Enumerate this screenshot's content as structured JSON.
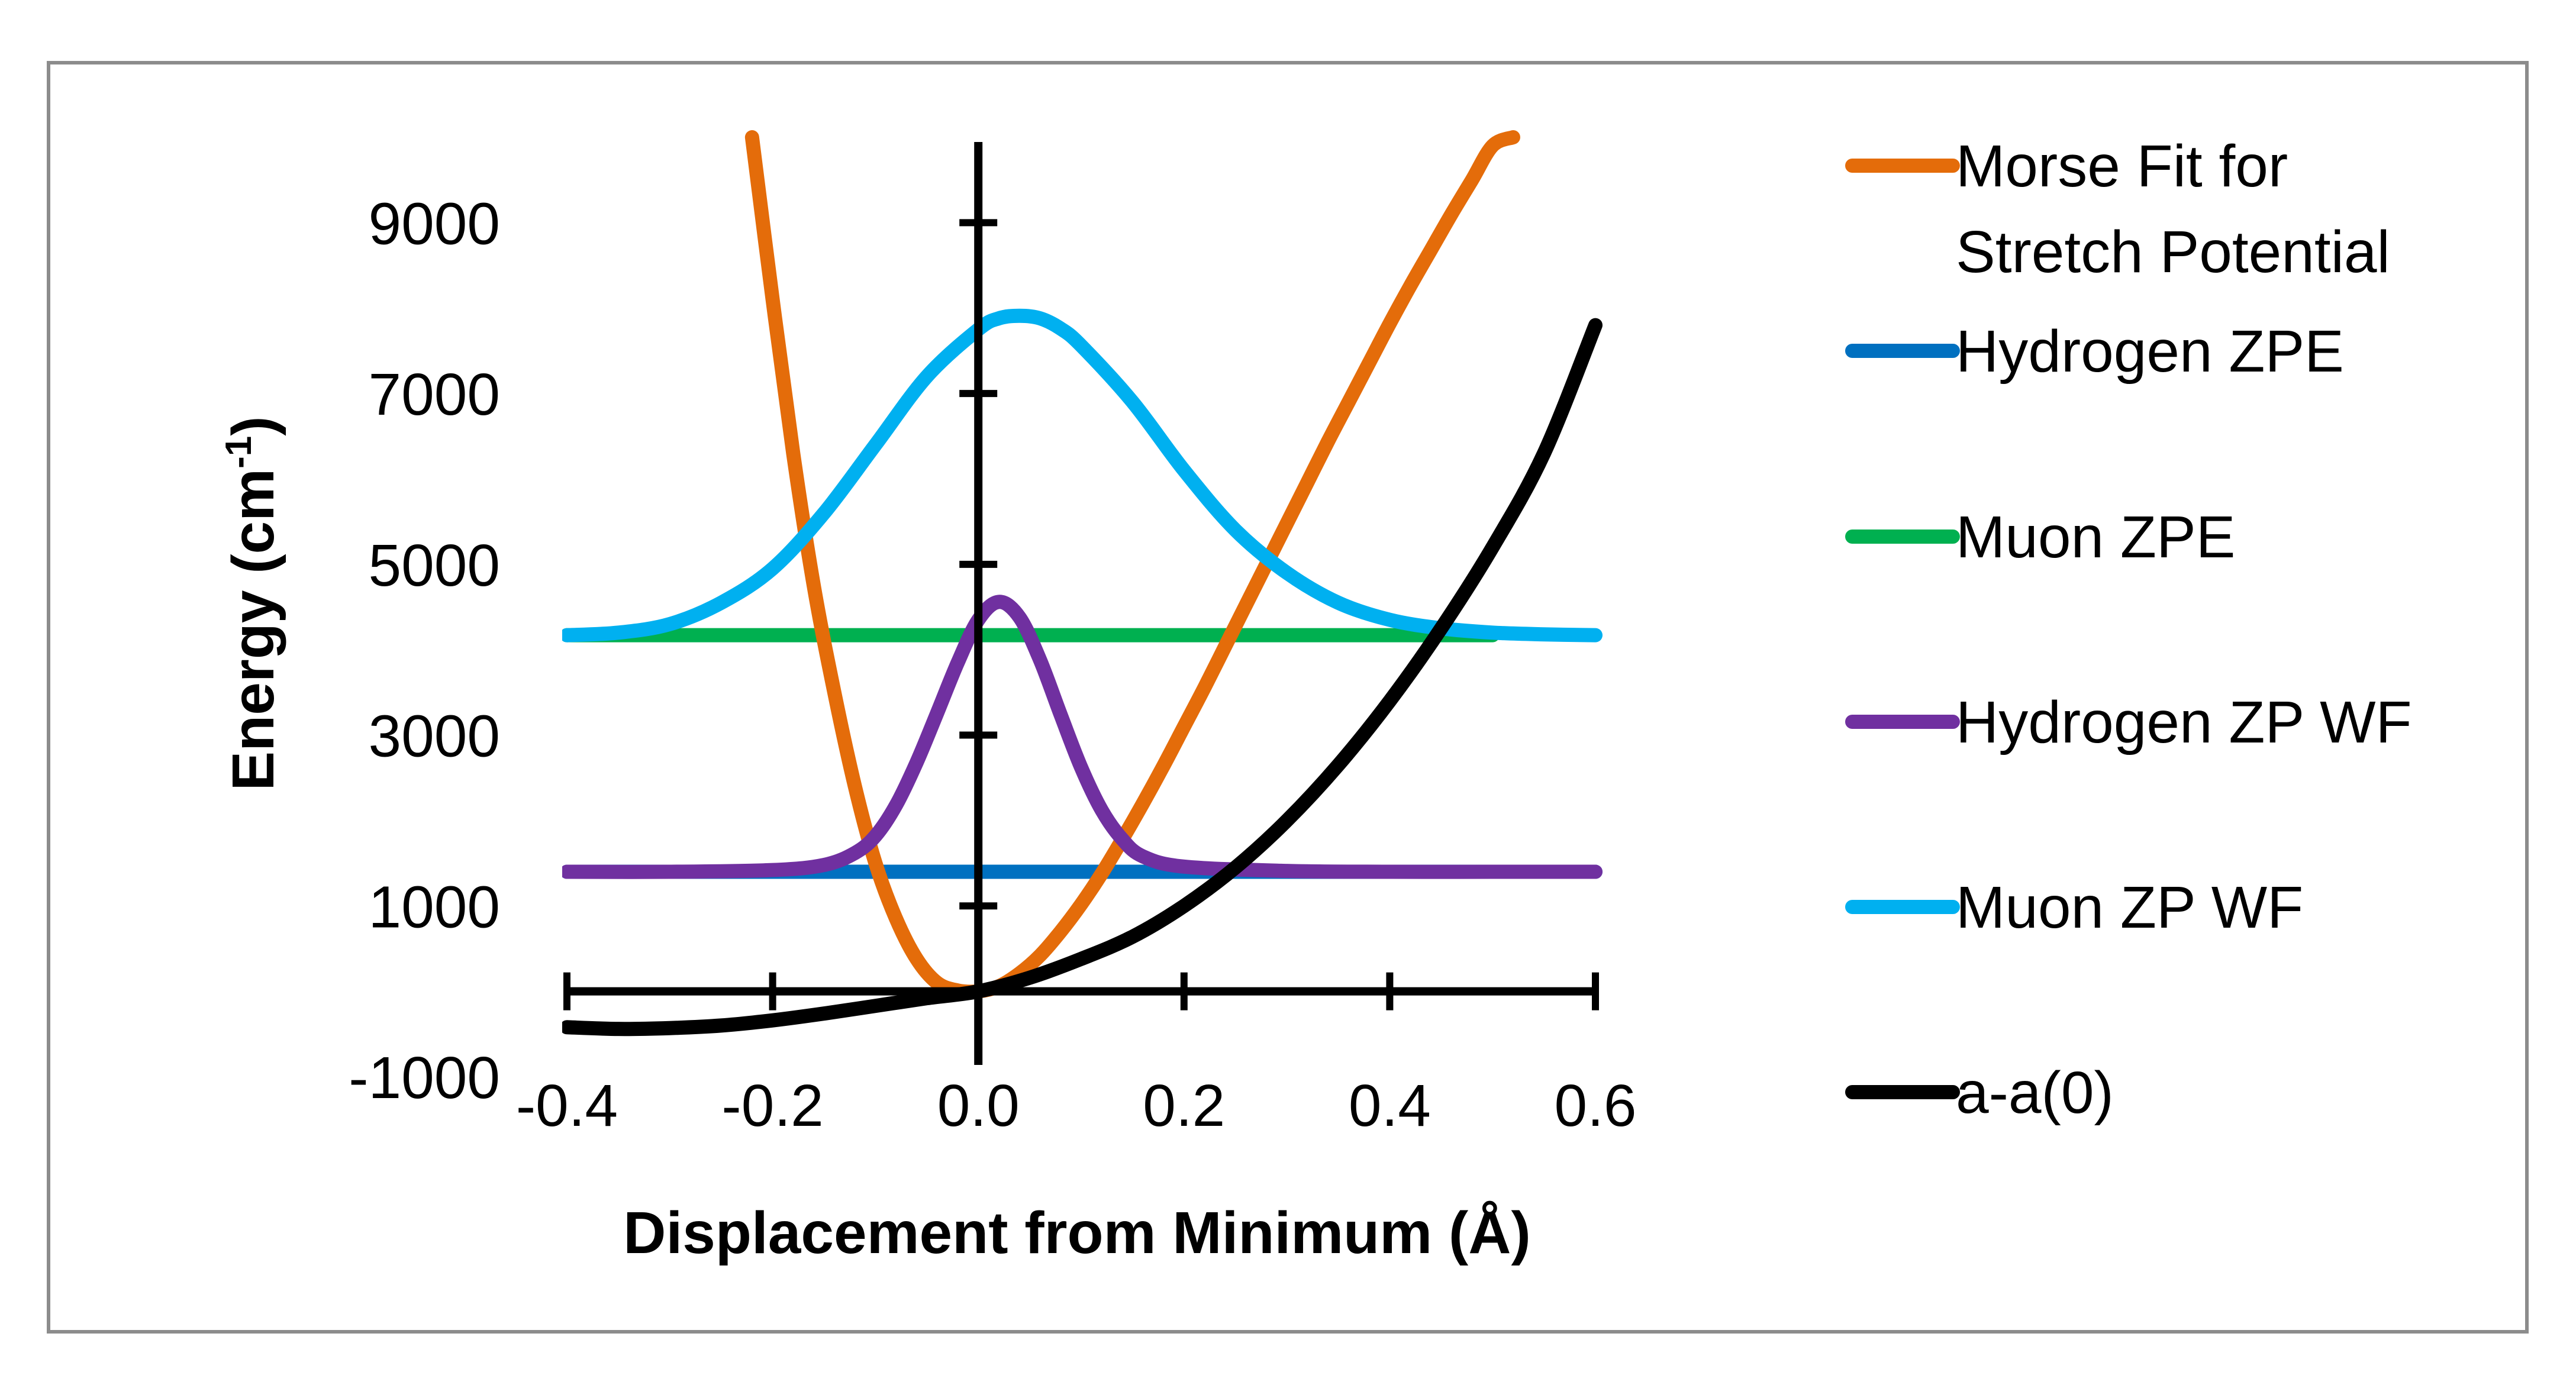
{
  "chart_data": {
    "type": "line",
    "title": "",
    "xlabel": "Displacement from Minimum (Å)",
    "ylabel_main": "Energy (cm",
    "ylabel_sup": "-1",
    "ylabel_close": ")",
    "xlim": [
      -0.4,
      0.6
    ],
    "ylim": [
      -1000,
      10000
    ],
    "x_ticks": [
      -0.4,
      -0.2,
      0.0,
      0.2,
      0.4,
      0.6
    ],
    "x_tick_labels": [
      "-0.4",
      "-0.2",
      "0.0",
      "0.2",
      "0.4",
      "0.6"
    ],
    "y_ticks": [
      1000,
      3000,
      5000,
      7000,
      9000
    ],
    "y_tick_labels": [
      "-1000",
      "1000",
      "3000",
      "5000",
      "7000",
      "9000"
    ],
    "y_label_values": [
      -1000,
      1000,
      3000,
      5000,
      7000,
      9000
    ],
    "legend_position": "right",
    "series": [
      {
        "name": "Morse Fit for Stretch Potential",
        "legend_lines": [
          "Morse Fit for",
          "Stretch Potential"
        ],
        "color": "#E46C0A",
        "x": [
          -0.22,
          -0.2,
          -0.18,
          -0.16,
          -0.14,
          -0.12,
          -0.1,
          -0.08,
          -0.06,
          -0.04,
          -0.02,
          0.0,
          0.02,
          0.04,
          0.06,
          0.08,
          0.1,
          0.12,
          0.14,
          0.16,
          0.18,
          0.2,
          0.22,
          0.24,
          0.26,
          0.28,
          0.3,
          0.32,
          0.34,
          0.36,
          0.38,
          0.4,
          0.42,
          0.44,
          0.46,
          0.48,
          0.5,
          0.52
        ],
        "y": [
          10000,
          8100,
          6300,
          4750,
          3500,
          2400,
          1500,
          850,
          380,
          100,
          10,
          0,
          60,
          210,
          420,
          700,
          1020,
          1380,
          1780,
          2200,
          2640,
          3100,
          3560,
          4040,
          4520,
          5000,
          5480,
          5960,
          6440,
          6900,
          7360,
          7820,
          8260,
          8680,
          9100,
          9500,
          9900,
          10000
        ]
      },
      {
        "name": "Hydrogen ZPE",
        "legend_lines": [
          "Hydrogen ZPE"
        ],
        "color": "#0070C0",
        "x": [
          -0.4,
          0.6
        ],
        "y": [
          1400,
          1400
        ]
      },
      {
        "name": "Muon ZPE",
        "legend_lines": [
          "Muon ZPE"
        ],
        "color": "#00B050",
        "x": [
          -0.4,
          0.5
        ],
        "y": [
          4170,
          4170
        ]
      },
      {
        "name": "Hydrogen ZP WF",
        "legend_lines": [
          "Hydrogen ZP WF"
        ],
        "color": "#7030A0",
        "x": [
          -0.4,
          -0.3,
          -0.2,
          -0.15,
          -0.12,
          -0.1,
          -0.08,
          -0.06,
          -0.04,
          -0.02,
          0.0,
          0.02,
          0.04,
          0.06,
          0.08,
          0.1,
          0.12,
          0.14,
          0.16,
          0.2,
          0.3,
          0.4,
          0.5,
          0.6
        ],
        "y": [
          1400,
          1400,
          1420,
          1480,
          1620,
          1820,
          2180,
          2680,
          3260,
          3850,
          4350,
          4560,
          4380,
          3880,
          3240,
          2620,
          2120,
          1780,
          1580,
          1460,
          1410,
          1400,
          1400,
          1400
        ]
      },
      {
        "name": "Muon ZP WF",
        "legend_lines": [
          "Muon ZP WF"
        ],
        "color": "#00B0F0",
        "x": [
          -0.4,
          -0.35,
          -0.3,
          -0.25,
          -0.2,
          -0.15,
          -0.1,
          -0.05,
          0.0,
          0.02,
          0.04,
          0.06,
          0.08,
          0.1,
          0.15,
          0.2,
          0.25,
          0.3,
          0.35,
          0.4,
          0.45,
          0.5,
          0.55,
          0.6
        ],
        "y": [
          4170,
          4200,
          4300,
          4550,
          4950,
          5600,
          6400,
          7200,
          7750,
          7880,
          7910,
          7880,
          7760,
          7560,
          6900,
          6100,
          5400,
          4900,
          4550,
          4350,
          4250,
          4200,
          4180,
          4170
        ]
      },
      {
        "name": "a-a(0)",
        "legend_lines": [
          "a-a(0)"
        ],
        "color": "#000000",
        "x": [
          -0.4,
          -0.35,
          -0.3,
          -0.25,
          -0.2,
          -0.15,
          -0.1,
          -0.05,
          0.0,
          0.05,
          0.1,
          0.15,
          0.2,
          0.25,
          0.3,
          0.35,
          0.4,
          0.45,
          0.5,
          0.55,
          0.6
        ],
        "y": [
          -420,
          -440,
          -430,
          -400,
          -340,
          -260,
          -170,
          -80,
          0,
          160,
          380,
          640,
          1000,
          1450,
          2000,
          2650,
          3400,
          4250,
          5200,
          6300,
          7800
        ]
      }
    ]
  }
}
